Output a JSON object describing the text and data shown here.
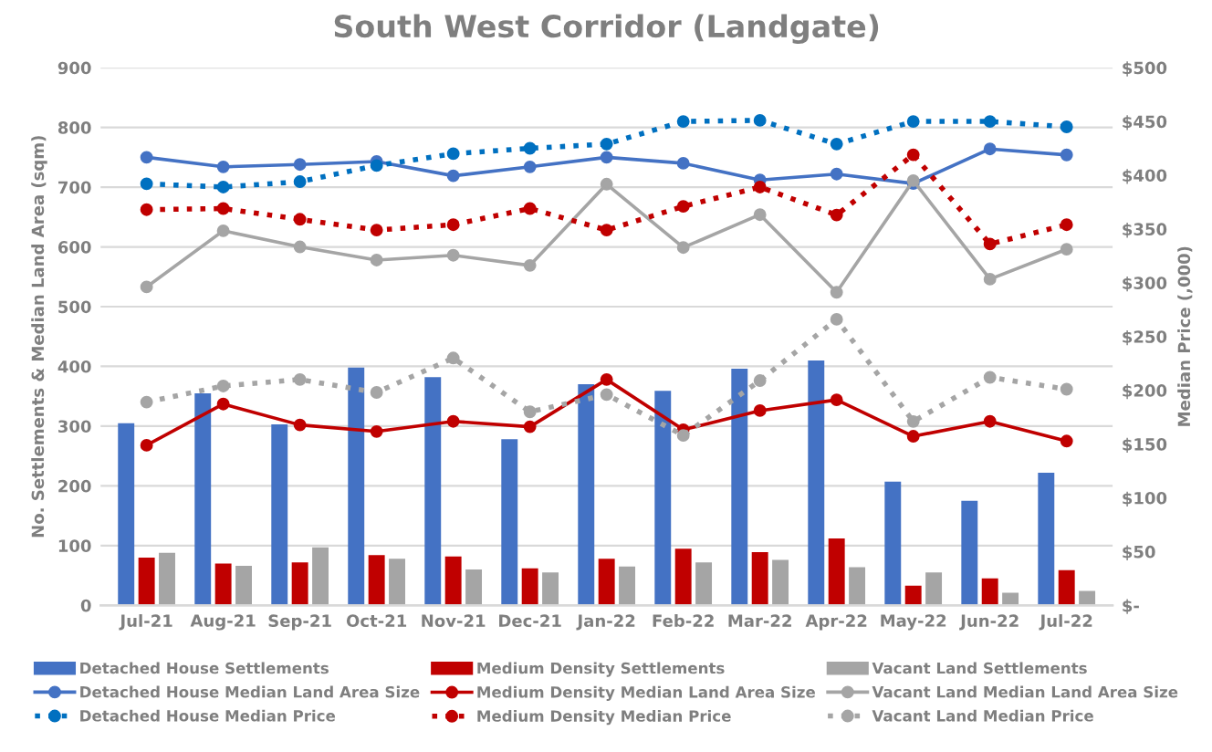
{
  "chart_data": {
    "type": "bar",
    "title": "South West Corridor (Landgate)",
    "ylabel": "No. Settlements & Median Land Area (sqm)",
    "y2label": "Median Price (,000)",
    "categories": [
      "Jul-21",
      "Aug-21",
      "Sep-21",
      "Oct-21",
      "Nov-21",
      "Dec-21",
      "Jan-22",
      "Feb-22",
      "Mar-22",
      "Apr-22",
      "May-22",
      "Jun-22",
      "Jul-22"
    ],
    "ylim": [
      0,
      900
    ],
    "yticks": [
      0,
      100,
      200,
      300,
      400,
      500,
      600,
      700,
      800,
      900
    ],
    "y2lim": [
      0,
      500
    ],
    "y2ticks": [
      {
        "value": 0,
        "label": "$-"
      },
      {
        "value": 50,
        "label": "$50"
      },
      {
        "value": 100,
        "label": "$100"
      },
      {
        "value": 150,
        "label": "$150"
      },
      {
        "value": 200,
        "label": "$200"
      },
      {
        "value": 250,
        "label": "$250"
      },
      {
        "value": 300,
        "label": "$300"
      },
      {
        "value": 350,
        "label": "$350"
      },
      {
        "value": 400,
        "label": "$400"
      },
      {
        "value": 450,
        "label": "$450"
      },
      {
        "value": 500,
        "label": "$500"
      }
    ],
    "grid": "y",
    "legend": "bottom",
    "marker": "circle",
    "series": [
      {
        "name": "Detached House Settlements",
        "color": "#4472c4",
        "values": [
          305,
          355,
          303,
          398,
          382,
          278,
          370,
          359,
          396,
          410,
          207,
          175,
          222
        ]
      },
      {
        "name": "Medium Density Settlements",
        "color": "#c00000",
        "values": [
          80,
          70,
          72,
          84,
          82,
          62,
          78,
          95,
          89,
          112,
          33,
          45,
          59
        ]
      },
      {
        "name": "Vacant Land Settlements",
        "color": "#a5a5a5",
        "values": [
          88,
          66,
          97,
          78,
          60,
          55,
          65,
          72,
          76,
          64,
          55,
          21,
          24
        ]
      },
      {
        "name": "Detached House Median Land Area Size",
        "type": "line",
        "line_style": "solid",
        "color": "#4472c4",
        "values": [
          750,
          734,
          738,
          743,
          719,
          734,
          750,
          740,
          712,
          722,
          706,
          764,
          754
        ]
      },
      {
        "name": "Medium Density Median Land Area Size",
        "type": "line",
        "line_style": "solid",
        "color": "#c00000",
        "values": [
          268,
          337,
          302,
          291,
          308,
          299,
          378,
          294,
          326,
          344,
          283,
          308,
          275
        ]
      },
      {
        "name": "Vacant Land Median Land Area Size",
        "type": "line",
        "line_style": "solid",
        "color": "#a5a5a5",
        "values": [
          533,
          627,
          600,
          578,
          586,
          569,
          705,
          599,
          654,
          524,
          711,
          546,
          596
        ]
      },
      {
        "name": "Detached House Median Price",
        "type": "line",
        "line_style": "dotted",
        "axis": "y2",
        "color": "#0070c0",
        "values": [
          392,
          389,
          394,
          409,
          420,
          425,
          429,
          450,
          451,
          429,
          450,
          450,
          445
        ]
      },
      {
        "name": "Medium Density Median Price",
        "type": "line",
        "line_style": "dotted",
        "axis": "y2",
        "color": "#c00000",
        "values": [
          368,
          369,
          359,
          349,
          354,
          369,
          349,
          371,
          389,
          363,
          419,
          336,
          354
        ]
      },
      {
        "name": "Vacant Land Median Price",
        "type": "line",
        "line_style": "dotted",
        "axis": "y2",
        "color": "#a5a5a5",
        "values": [
          189,
          204,
          210,
          198,
          230,
          180,
          196,
          158,
          209,
          266,
          171,
          212,
          201
        ]
      }
    ]
  }
}
